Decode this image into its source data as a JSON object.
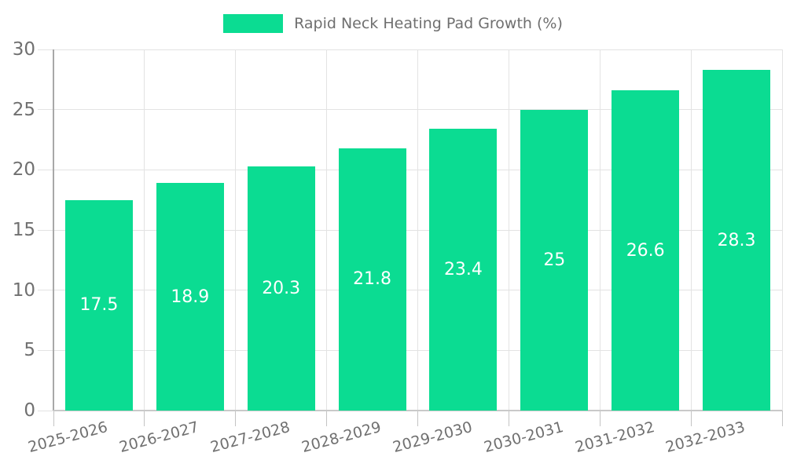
{
  "chart_data": {
    "type": "bar",
    "title": "",
    "legend": "Rapid Neck Heating Pad Growth (%)",
    "legend_position": "top",
    "categories": [
      "2025-2026",
      "2026-2027",
      "2027-2028",
      "2028-2029",
      "2029-2030",
      "2030-2031",
      "2031-2032",
      "2032-2033"
    ],
    "values": [
      17.5,
      18.9,
      20.3,
      21.8,
      23.4,
      25,
      26.6,
      28.3
    ],
    "value_labels": [
      "17.5",
      "18.9",
      "20.3",
      "21.8",
      "23.4",
      "25",
      "26.6",
      "28.3"
    ],
    "xlabel": "",
    "ylabel": "",
    "ylim": [
      0,
      30
    ],
    "yticks": [
      0,
      5,
      10,
      15,
      20,
      25,
      30
    ],
    "grid": true,
    "colors": {
      "bar": "#0bdc92",
      "bar_value_text": "#ffffff",
      "axis_text": "#707070",
      "legend_text": "#6f6f6f",
      "gridline": "#e3e3e3",
      "y_axis_line": "#a8a8a8",
      "x_axis_line": "#c9c9c9",
      "tick": "#c4c4c4",
      "background": "#ffffff"
    }
  }
}
